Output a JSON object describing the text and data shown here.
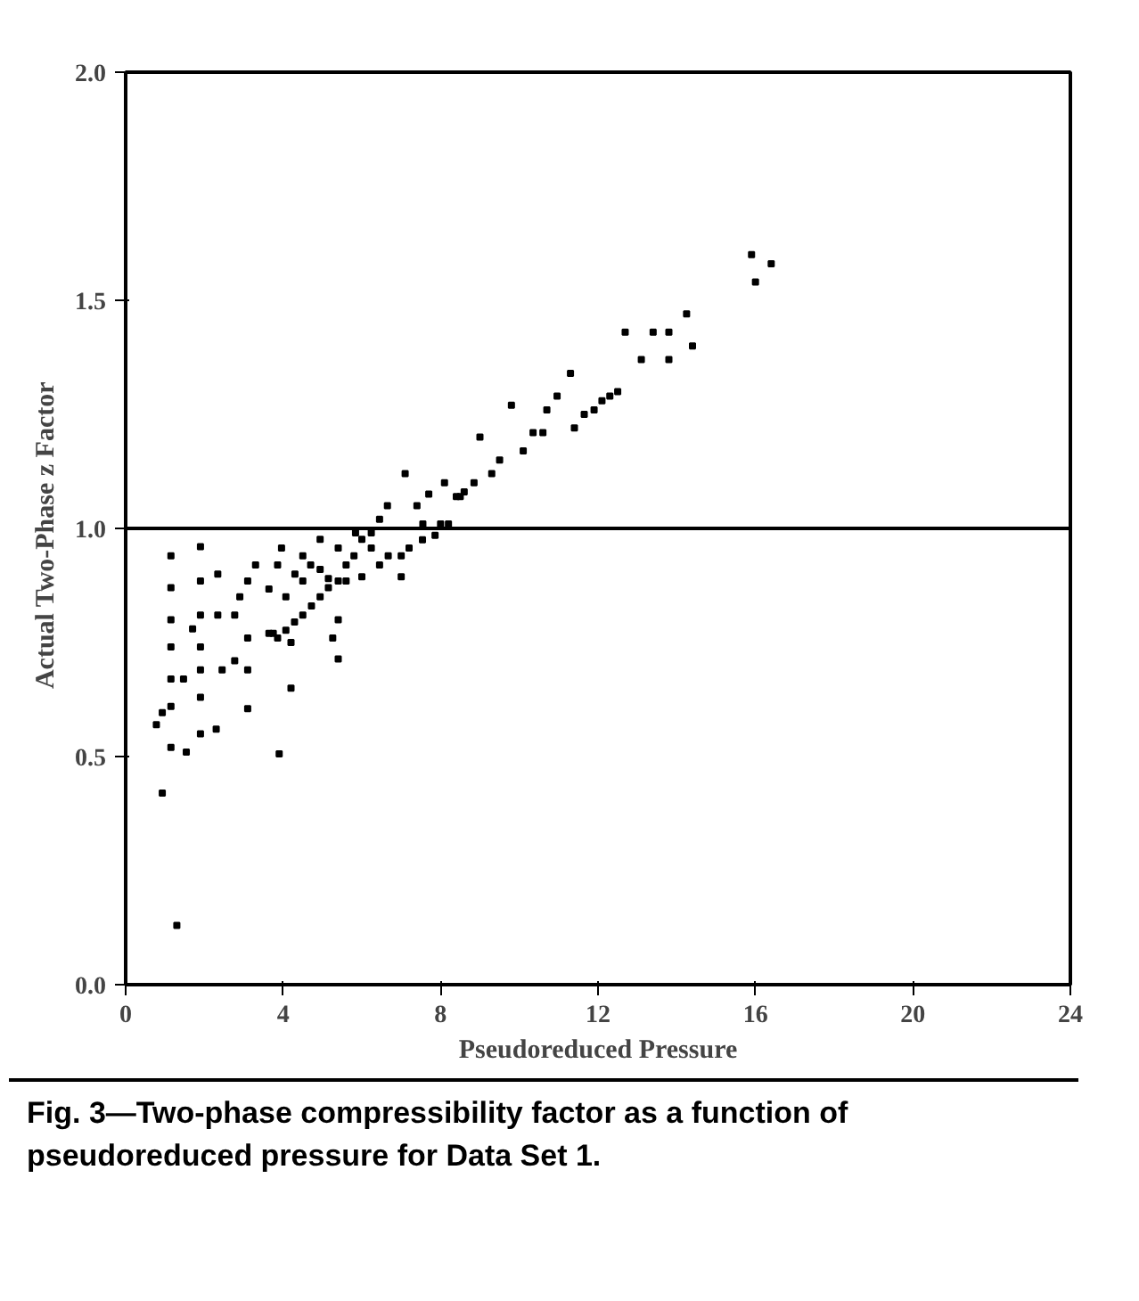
{
  "chart_data": {
    "type": "scatter",
    "xlabel": "Pseudoreduced Pressure",
    "ylabel": "Actual Two-Phase  z  Factor",
    "annotations": [
      "Fig. 3—Two-phase compressibility factor as a function of pseudoreduced pressure for Data Set 1."
    ],
    "x": [
      12.69,
      13.1,
      13.4,
      13.8,
      13.8,
      14.25,
      14.4,
      15.9,
      16.0,
      16.4,
      12.5,
      12.3,
      12.1,
      11.9,
      11.65,
      11.4,
      11.3,
      10.96,
      10.7,
      10.6,
      10.35,
      10.1,
      9.8,
      9.5,
      9.3,
      9.0,
      8.85,
      8.6,
      8.4,
      8.2,
      8.0,
      7.86,
      7.54,
      7.2,
      7.0,
      7.0,
      7.1,
      6.65,
      6.45,
      6.24,
      6.0,
      5.8,
      5.6,
      5.4,
      5.15,
      4.94,
      4.72,
      4.5,
      4.29,
      4.07,
      3.86,
      3.64,
      3.96,
      4.5,
      4.94,
      5.4,
      5.84,
      6.24,
      6.67,
      7.4,
      7.7,
      8.1,
      8.5,
      7.55,
      3.3,
      3.1,
      2.9,
      2.77,
      3.1,
      3.1,
      3.1,
      2.77,
      2.45,
      2.34,
      2.34,
      1.9,
      1.9,
      1.9,
      1.9,
      1.9,
      1.9,
      1.7,
      1.47,
      1.54,
      1.9,
      2.3,
      1.15,
      1.15,
      1.15,
      1.15,
      1.15,
      1.15,
      1.15,
      0.93,
      0.78,
      0.93,
      1.3,
      3.9,
      4.2,
      4.2,
      3.75,
      5.4,
      5.26,
      5.4,
      3.86,
      4.3,
      4.7,
      5.15,
      5.6,
      6.0,
      6.45,
      3.64,
      4.07,
      4.5,
      4.94
    ],
    "values": [
      1.43,
      1.37,
      1.43,
      1.43,
      1.37,
      1.47,
      1.4,
      1.6,
      1.54,
      1.58,
      1.3,
      1.29,
      1.28,
      1.26,
      1.25,
      1.22,
      1.34,
      1.29,
      1.26,
      1.21,
      1.21,
      1.17,
      1.27,
      1.15,
      1.12,
      1.2,
      1.1,
      1.08,
      1.07,
      1.01,
      1.01,
      0.985,
      0.975,
      0.957,
      0.94,
      0.894,
      1.12,
      1.05,
      1.02,
      0.99,
      0.976,
      0.94,
      0.92,
      0.885,
      0.87,
      0.85,
      0.83,
      0.81,
      0.795,
      0.777,
      0.76,
      0.77,
      0.957,
      0.94,
      0.976,
      0.957,
      0.99,
      0.957,
      0.94,
      1.05,
      1.075,
      1.1,
      1.07,
      1.01,
      0.92,
      0.885,
      0.85,
      0.81,
      0.76,
      0.69,
      0.605,
      0.71,
      0.69,
      0.9,
      0.81,
      0.96,
      0.885,
      0.81,
      0.74,
      0.69,
      0.63,
      0.78,
      0.67,
      0.51,
      0.55,
      0.56,
      0.94,
      0.87,
      0.8,
      0.74,
      0.67,
      0.61,
      0.52,
      0.596,
      0.57,
      0.42,
      0.13,
      0.506,
      0.65,
      0.75,
      0.77,
      0.8,
      0.76,
      0.714,
      0.92,
      0.9,
      0.92,
      0.89,
      0.885,
      0.894,
      0.92,
      0.867,
      0.85,
      0.885,
      0.91
    ],
    "color": "#000000",
    "marker": "square",
    "xlim": [
      0,
      24
    ],
    "xticks": [
      0,
      4,
      8,
      12,
      16,
      20,
      24
    ],
    "ylim": [
      0,
      2
    ],
    "yticks": [
      {
        "value": 0,
        "label": "0.0"
      },
      {
        "value": 0.5,
        "label": "0.5"
      },
      {
        "value": 1,
        "label": "1.0"
      },
      {
        "value": 1.5,
        "label": "1.5"
      },
      {
        "value": 2,
        "label": "2.0"
      }
    ],
    "ref_lines": [
      {
        "axis": "y",
        "value": 1.0,
        "color": "#000000"
      }
    ],
    "grid": false
  }
}
